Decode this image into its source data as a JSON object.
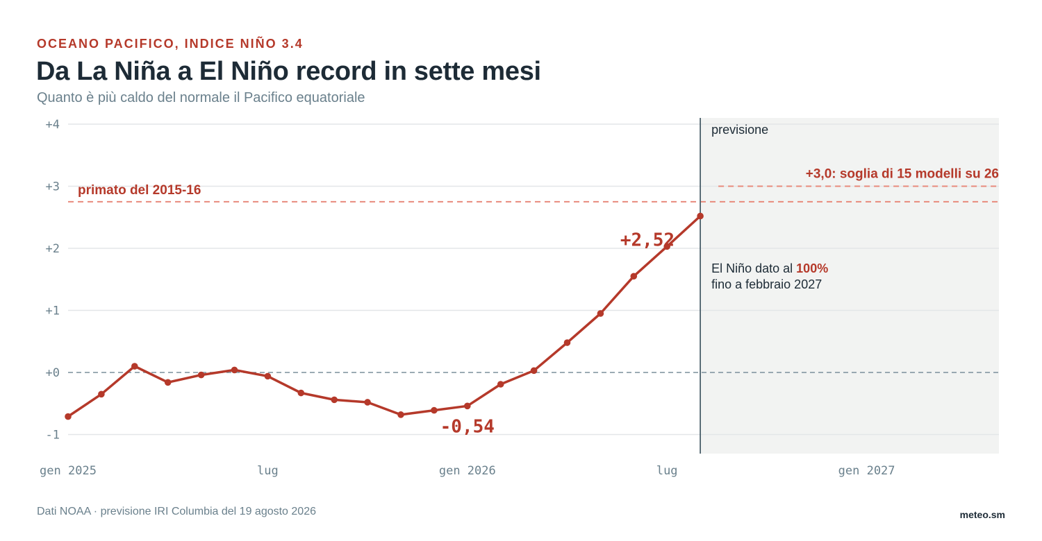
{
  "header": {
    "kicker": "OCEANO PACIFICO, INDICE NIÑO 3.4",
    "title": "Da La Niña a El Niño record in sette mesi",
    "subtitle": "Quanto è più caldo del normale il Pacifico equatoriale"
  },
  "footer": {
    "source": "Dati NOAA · previsione IRI Columbia del 19 agosto 2026",
    "brand": "meteo.sm"
  },
  "colors": {
    "accent": "#b5392a",
    "reference_line": "#e88a7c",
    "zero_line": "#7a8f9b",
    "forecast_band": "#f2f3f2",
    "divider": "#4a5f6b",
    "grid": "#e3e6e8",
    "text": "#1d2b36",
    "muted": "#6a808c"
  },
  "chart_data": {
    "type": "line",
    "title": "Da La Niña a El Niño record in sette mesi",
    "subtitle": "Quanto è più caldo del normale il Pacifico equatoriale",
    "x_tick_labels": [
      {
        "month_index": 0,
        "label": "gen 2025"
      },
      {
        "month_index": 6,
        "label": "lug"
      },
      {
        "month_index": 12,
        "label": "gen 2026"
      },
      {
        "month_index": 18,
        "label": "lug"
      },
      {
        "month_index": 24,
        "label": "gen 2027"
      }
    ],
    "y_tick_labels": [
      {
        "value": 4,
        "label": "+4"
      },
      {
        "value": 3,
        "label": "+3"
      },
      {
        "value": 2,
        "label": "+2"
      },
      {
        "value": 1,
        "label": "+1"
      },
      {
        "value": 0,
        "label": "+0"
      },
      {
        "value": -1,
        "label": "-1"
      }
    ],
    "xlim": [
      "2025-01",
      "2027-04"
    ],
    "ylim": [
      -1.3,
      4.1
    ],
    "grid": true,
    "series": [
      {
        "x": [
          "2025-01",
          "2025-02",
          "2025-03",
          "2025-04",
          "2025-05",
          "2025-06",
          "2025-07",
          "2025-08",
          "2025-09",
          "2025-10",
          "2025-11",
          "2025-12",
          "2026-01",
          "2026-02",
          "2026-03",
          "2026-04",
          "2026-05",
          "2026-06",
          "2026-07",
          "2026-08"
        ],
        "values": [
          -0.71,
          -0.35,
          0.1,
          -0.16,
          -0.04,
          0.04,
          -0.06,
          -0.33,
          -0.44,
          -0.48,
          -0.68,
          -0.61,
          -0.54,
          -0.19,
          0.03,
          0.48,
          0.95,
          1.55,
          2.03,
          2.52
        ]
      }
    ],
    "zero_line": 0,
    "forecast_start": "2026-08",
    "forecast_label": "previsione",
    "reference_lines": [
      {
        "value": 2.75,
        "label": "primato del 2015-16",
        "from": "2025-01",
        "to": "2027-04"
      },
      {
        "value": 3.0,
        "label": "+3,0: soglia di 15 modelli su 26",
        "from": "2026-08",
        "to": "2027-04"
      }
    ],
    "point_labels": [
      {
        "x": "2026-01",
        "value": -0.54,
        "label": "-0,54"
      },
      {
        "x": "2026-08",
        "value": 2.52,
        "label": "+2,52"
      }
    ],
    "forecast_note": {
      "text_before": "El Niño dato al ",
      "highlight": "100%",
      "line2": "fino a febbraio 2027"
    }
  }
}
